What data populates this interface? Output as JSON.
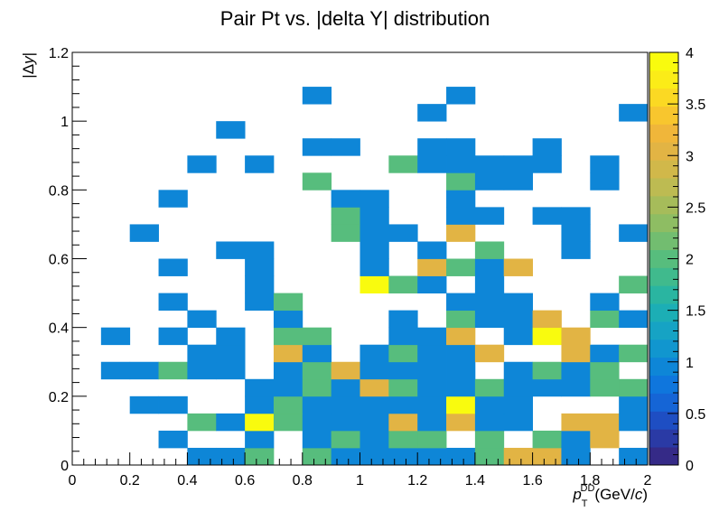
{
  "chart_data": {
    "type": "heatmap",
    "title": "Pair Pt vs. |delta Y| distribution",
    "xlabel": {
      "main": "p",
      "sub": "T",
      "sup": "DD",
      "unit_pre": "(GeV/",
      "unit_it": "c",
      "unit_post": ")"
    },
    "ylabel": {
      "pre": "|",
      "delta": "Δ",
      "var": "y",
      "post": "|"
    },
    "xlim": [
      0,
      2
    ],
    "ylim": [
      0,
      1.2
    ],
    "zlim": [
      0,
      4
    ],
    "bins": {
      "nx": 20,
      "ny": 24,
      "dx": 0.1,
      "dy": 0.05
    },
    "x_tick_labels": [
      "0",
      "0.2",
      "0.4",
      "0.6",
      "0.8",
      "1",
      "1.2",
      "1.4",
      "1.6",
      "1.8",
      "2"
    ],
    "y_tick_labels": [
      "0",
      "0.2",
      "0.4",
      "0.6",
      "0.8",
      "1",
      "1.2"
    ],
    "z_tick_labels": [
      "0",
      "0.5",
      "1",
      "1.5",
      "2",
      "2.5",
      "3",
      "3.5",
      "4"
    ],
    "palette": [
      "#352a87",
      "#2a3aa5",
      "#1e4ec3",
      "#1565d6",
      "#0f76dd",
      "#0e86d7",
      "#1196cf",
      "#16a3c4",
      "#1caeb5",
      "#2ab5a1",
      "#40ba8d",
      "#57bd7d",
      "#72bd70",
      "#8ebd63",
      "#a6bc5a",
      "#bdbb52",
      "#d1b84a",
      "#e2b444",
      "#f0b63a",
      "#f8c62e",
      "#fbd923",
      "#fbec18",
      "#f9fb0e"
    ],
    "cells": [
      {
        "x": 0.45,
        "y": 0.025,
        "v": 1
      },
      {
        "x": 0.55,
        "y": 0.025,
        "v": 1
      },
      {
        "x": 0.65,
        "y": 0.025,
        "v": 2
      },
      {
        "x": 0.85,
        "y": 0.025,
        "v": 2
      },
      {
        "x": 0.95,
        "y": 0.025,
        "v": 1
      },
      {
        "x": 1.05,
        "y": 0.025,
        "v": 1
      },
      {
        "x": 1.15,
        "y": 0.025,
        "v": 1
      },
      {
        "x": 1.25,
        "y": 0.025,
        "v": 1
      },
      {
        "x": 1.35,
        "y": 0.025,
        "v": 1
      },
      {
        "x": 1.45,
        "y": 0.025,
        "v": 2
      },
      {
        "x": 1.55,
        "y": 0.025,
        "v": 3
      },
      {
        "x": 1.65,
        "y": 0.025,
        "v": 3
      },
      {
        "x": 1.75,
        "y": 0.025,
        "v": 1
      },
      {
        "x": 1.95,
        "y": 0.025,
        "v": 1
      },
      {
        "x": 0.35,
        "y": 0.075,
        "v": 1
      },
      {
        "x": 0.65,
        "y": 0.075,
        "v": 1
      },
      {
        "x": 0.85,
        "y": 0.075,
        "v": 1
      },
      {
        "x": 0.95,
        "y": 0.075,
        "v": 2
      },
      {
        "x": 1.05,
        "y": 0.075,
        "v": 1
      },
      {
        "x": 1.15,
        "y": 0.075,
        "v": 2
      },
      {
        "x": 1.25,
        "y": 0.075,
        "v": 2
      },
      {
        "x": 1.45,
        "y": 0.075,
        "v": 2
      },
      {
        "x": 1.65,
        "y": 0.075,
        "v": 2
      },
      {
        "x": 1.75,
        "y": 0.075,
        "v": 1
      },
      {
        "x": 1.85,
        "y": 0.075,
        "v": 3
      },
      {
        "x": 0.45,
        "y": 0.125,
        "v": 2
      },
      {
        "x": 0.55,
        "y": 0.125,
        "v": 1
      },
      {
        "x": 0.65,
        "y": 0.125,
        "v": 4
      },
      {
        "x": 0.75,
        "y": 0.125,
        "v": 2
      },
      {
        "x": 0.85,
        "y": 0.125,
        "v": 1
      },
      {
        "x": 0.95,
        "y": 0.125,
        "v": 1
      },
      {
        "x": 1.05,
        "y": 0.125,
        "v": 1
      },
      {
        "x": 1.15,
        "y": 0.125,
        "v": 3
      },
      {
        "x": 1.25,
        "y": 0.125,
        "v": 1
      },
      {
        "x": 1.35,
        "y": 0.125,
        "v": 3
      },
      {
        "x": 1.45,
        "y": 0.125,
        "v": 1
      },
      {
        "x": 1.55,
        "y": 0.125,
        "v": 1
      },
      {
        "x": 1.75,
        "y": 0.125,
        "v": 3
      },
      {
        "x": 1.85,
        "y": 0.125,
        "v": 3
      },
      {
        "x": 1.95,
        "y": 0.125,
        "v": 1
      },
      {
        "x": 0.25,
        "y": 0.175,
        "v": 1
      },
      {
        "x": 0.35,
        "y": 0.175,
        "v": 1
      },
      {
        "x": 0.65,
        "y": 0.175,
        "v": 1
      },
      {
        "x": 0.75,
        "y": 0.175,
        "v": 2
      },
      {
        "x": 0.85,
        "y": 0.175,
        "v": 1
      },
      {
        "x": 0.95,
        "y": 0.175,
        "v": 1
      },
      {
        "x": 1.05,
        "y": 0.175,
        "v": 1
      },
      {
        "x": 1.15,
        "y": 0.175,
        "v": 1
      },
      {
        "x": 1.25,
        "y": 0.175,
        "v": 1
      },
      {
        "x": 1.35,
        "y": 0.175,
        "v": 4
      },
      {
        "x": 1.45,
        "y": 0.175,
        "v": 1
      },
      {
        "x": 1.55,
        "y": 0.175,
        "v": 1
      },
      {
        "x": 1.95,
        "y": 0.175,
        "v": 1
      },
      {
        "x": 0.65,
        "y": 0.225,
        "v": 1
      },
      {
        "x": 0.75,
        "y": 0.225,
        "v": 1
      },
      {
        "x": 0.85,
        "y": 0.225,
        "v": 2
      },
      {
        "x": 0.95,
        "y": 0.225,
        "v": 1
      },
      {
        "x": 1.05,
        "y": 0.225,
        "v": 3
      },
      {
        "x": 1.15,
        "y": 0.225,
        "v": 2
      },
      {
        "x": 1.25,
        "y": 0.225,
        "v": 1
      },
      {
        "x": 1.35,
        "y": 0.225,
        "v": 1
      },
      {
        "x": 1.45,
        "y": 0.225,
        "v": 2
      },
      {
        "x": 1.55,
        "y": 0.225,
        "v": 1
      },
      {
        "x": 1.65,
        "y": 0.225,
        "v": 1
      },
      {
        "x": 1.75,
        "y": 0.225,
        "v": 1
      },
      {
        "x": 1.85,
        "y": 0.225,
        "v": 2
      },
      {
        "x": 1.95,
        "y": 0.225,
        "v": 2
      },
      {
        "x": 0.15,
        "y": 0.275,
        "v": 1
      },
      {
        "x": 0.25,
        "y": 0.275,
        "v": 1
      },
      {
        "x": 0.35,
        "y": 0.275,
        "v": 2
      },
      {
        "x": 0.45,
        "y": 0.275,
        "v": 1
      },
      {
        "x": 0.55,
        "y": 0.275,
        "v": 1
      },
      {
        "x": 0.75,
        "y": 0.275,
        "v": 1
      },
      {
        "x": 0.85,
        "y": 0.275,
        "v": 2
      },
      {
        "x": 0.95,
        "y": 0.275,
        "v": 3
      },
      {
        "x": 1.05,
        "y": 0.275,
        "v": 1
      },
      {
        "x": 1.15,
        "y": 0.275,
        "v": 1
      },
      {
        "x": 1.25,
        "y": 0.275,
        "v": 1
      },
      {
        "x": 1.35,
        "y": 0.275,
        "v": 1
      },
      {
        "x": 1.55,
        "y": 0.275,
        "v": 1
      },
      {
        "x": 1.65,
        "y": 0.275,
        "v": 2
      },
      {
        "x": 1.75,
        "y": 0.275,
        "v": 1
      },
      {
        "x": 1.85,
        "y": 0.275,
        "v": 2
      },
      {
        "x": 0.45,
        "y": 0.325,
        "v": 1
      },
      {
        "x": 0.55,
        "y": 0.325,
        "v": 1
      },
      {
        "x": 0.75,
        "y": 0.325,
        "v": 3
      },
      {
        "x": 0.85,
        "y": 0.325,
        "v": 1
      },
      {
        "x": 1.05,
        "y": 0.325,
        "v": 1
      },
      {
        "x": 1.15,
        "y": 0.325,
        "v": 2
      },
      {
        "x": 1.25,
        "y": 0.325,
        "v": 1
      },
      {
        "x": 1.35,
        "y": 0.325,
        "v": 1
      },
      {
        "x": 1.45,
        "y": 0.325,
        "v": 3
      },
      {
        "x": 1.75,
        "y": 0.325,
        "v": 3
      },
      {
        "x": 1.85,
        "y": 0.325,
        "v": 1
      },
      {
        "x": 1.95,
        "y": 0.325,
        "v": 2
      },
      {
        "x": 0.15,
        "y": 0.375,
        "v": 1
      },
      {
        "x": 0.35,
        "y": 0.375,
        "v": 1
      },
      {
        "x": 0.55,
        "y": 0.375,
        "v": 1
      },
      {
        "x": 0.75,
        "y": 0.375,
        "v": 2
      },
      {
        "x": 0.85,
        "y": 0.375,
        "v": 2
      },
      {
        "x": 1.15,
        "y": 0.375,
        "v": 1
      },
      {
        "x": 1.25,
        "y": 0.375,
        "v": 1
      },
      {
        "x": 1.35,
        "y": 0.375,
        "v": 3
      },
      {
        "x": 1.55,
        "y": 0.375,
        "v": 1
      },
      {
        "x": 1.65,
        "y": 0.375,
        "v": 4
      },
      {
        "x": 1.75,
        "y": 0.375,
        "v": 3
      },
      {
        "x": 0.45,
        "y": 0.425,
        "v": 1
      },
      {
        "x": 0.75,
        "y": 0.425,
        "v": 1
      },
      {
        "x": 1.15,
        "y": 0.425,
        "v": 1
      },
      {
        "x": 1.35,
        "y": 0.425,
        "v": 2
      },
      {
        "x": 1.45,
        "y": 0.425,
        "v": 1
      },
      {
        "x": 1.55,
        "y": 0.425,
        "v": 1
      },
      {
        "x": 1.65,
        "y": 0.425,
        "v": 3
      },
      {
        "x": 1.85,
        "y": 0.425,
        "v": 2
      },
      {
        "x": 1.95,
        "y": 0.425,
        "v": 1
      },
      {
        "x": 0.35,
        "y": 0.475,
        "v": 1
      },
      {
        "x": 0.65,
        "y": 0.475,
        "v": 1
      },
      {
        "x": 0.75,
        "y": 0.475,
        "v": 2
      },
      {
        "x": 1.35,
        "y": 0.475,
        "v": 1
      },
      {
        "x": 1.45,
        "y": 0.475,
        "v": 1
      },
      {
        "x": 1.55,
        "y": 0.475,
        "v": 1
      },
      {
        "x": 1.85,
        "y": 0.475,
        "v": 1
      },
      {
        "x": 0.65,
        "y": 0.525,
        "v": 1
      },
      {
        "x": 1.05,
        "y": 0.525,
        "v": 4
      },
      {
        "x": 1.15,
        "y": 0.525,
        "v": 2
      },
      {
        "x": 1.25,
        "y": 0.525,
        "v": 1
      },
      {
        "x": 1.45,
        "y": 0.525,
        "v": 1
      },
      {
        "x": 1.95,
        "y": 0.525,
        "v": 2
      },
      {
        "x": 0.35,
        "y": 0.575,
        "v": 1
      },
      {
        "x": 0.65,
        "y": 0.575,
        "v": 1
      },
      {
        "x": 1.05,
        "y": 0.575,
        "v": 1
      },
      {
        "x": 1.25,
        "y": 0.575,
        "v": 3
      },
      {
        "x": 1.35,
        "y": 0.575,
        "v": 2
      },
      {
        "x": 1.45,
        "y": 0.575,
        "v": 1
      },
      {
        "x": 1.55,
        "y": 0.575,
        "v": 3
      },
      {
        "x": 0.55,
        "y": 0.625,
        "v": 1
      },
      {
        "x": 0.65,
        "y": 0.625,
        "v": 1
      },
      {
        "x": 1.05,
        "y": 0.625,
        "v": 1
      },
      {
        "x": 1.25,
        "y": 0.625,
        "v": 1
      },
      {
        "x": 1.45,
        "y": 0.625,
        "v": 2
      },
      {
        "x": 1.75,
        "y": 0.625,
        "v": 1
      },
      {
        "x": 0.25,
        "y": 0.675,
        "v": 1
      },
      {
        "x": 0.95,
        "y": 0.675,
        "v": 2
      },
      {
        "x": 1.05,
        "y": 0.675,
        "v": 1
      },
      {
        "x": 1.15,
        "y": 0.675,
        "v": 1
      },
      {
        "x": 1.35,
        "y": 0.675,
        "v": 3
      },
      {
        "x": 1.75,
        "y": 0.675,
        "v": 1
      },
      {
        "x": 1.95,
        "y": 0.675,
        "v": 1
      },
      {
        "x": 0.95,
        "y": 0.725,
        "v": 2
      },
      {
        "x": 1.05,
        "y": 0.725,
        "v": 1
      },
      {
        "x": 1.35,
        "y": 0.725,
        "v": 1
      },
      {
        "x": 1.45,
        "y": 0.725,
        "v": 1
      },
      {
        "x": 1.65,
        "y": 0.725,
        "v": 1
      },
      {
        "x": 1.75,
        "y": 0.725,
        "v": 1
      },
      {
        "x": 0.35,
        "y": 0.775,
        "v": 1
      },
      {
        "x": 0.95,
        "y": 0.775,
        "v": 1
      },
      {
        "x": 1.05,
        "y": 0.775,
        "v": 1
      },
      {
        "x": 1.35,
        "y": 0.775,
        "v": 1
      },
      {
        "x": 0.85,
        "y": 0.825,
        "v": 2
      },
      {
        "x": 1.35,
        "y": 0.825,
        "v": 2
      },
      {
        "x": 1.45,
        "y": 0.825,
        "v": 1
      },
      {
        "x": 1.55,
        "y": 0.825,
        "v": 1
      },
      {
        "x": 1.85,
        "y": 0.825,
        "v": 1
      },
      {
        "x": 0.45,
        "y": 0.875,
        "v": 1
      },
      {
        "x": 0.65,
        "y": 0.875,
        "v": 1
      },
      {
        "x": 1.15,
        "y": 0.875,
        "v": 2
      },
      {
        "x": 1.25,
        "y": 0.875,
        "v": 1
      },
      {
        "x": 1.35,
        "y": 0.875,
        "v": 1
      },
      {
        "x": 1.45,
        "y": 0.875,
        "v": 1
      },
      {
        "x": 1.55,
        "y": 0.875,
        "v": 1
      },
      {
        "x": 1.65,
        "y": 0.875,
        "v": 1
      },
      {
        "x": 1.85,
        "y": 0.875,
        "v": 1
      },
      {
        "x": 0.85,
        "y": 0.925,
        "v": 1
      },
      {
        "x": 0.95,
        "y": 0.925,
        "v": 1
      },
      {
        "x": 1.25,
        "y": 0.925,
        "v": 1
      },
      {
        "x": 1.35,
        "y": 0.925,
        "v": 1
      },
      {
        "x": 1.65,
        "y": 0.925,
        "v": 1
      },
      {
        "x": 0.55,
        "y": 0.975,
        "v": 1
      },
      {
        "x": 1.25,
        "y": 1.025,
        "v": 1
      },
      {
        "x": 1.95,
        "y": 1.025,
        "v": 1
      },
      {
        "x": 0.85,
        "y": 1.075,
        "v": 1
      },
      {
        "x": 1.35,
        "y": 1.075,
        "v": 1
      }
    ]
  }
}
